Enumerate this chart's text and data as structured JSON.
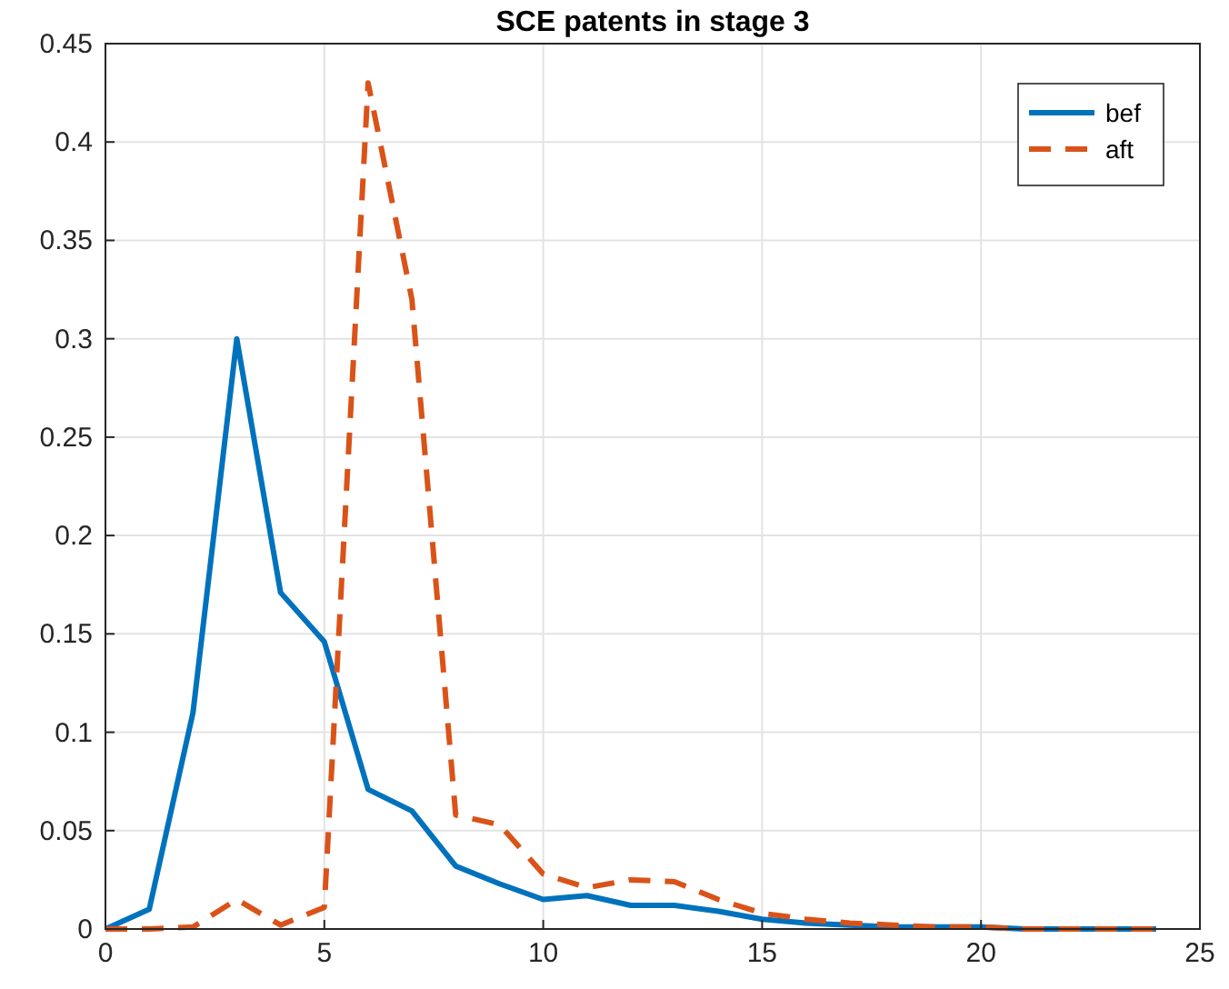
{
  "chart_data": {
    "type": "line",
    "title": "SCE patents in stage 3",
    "x": [
      0,
      1,
      2,
      3,
      4,
      5,
      6,
      7,
      8,
      9,
      10,
      11,
      12,
      13,
      14,
      15,
      16,
      17,
      18,
      19,
      20,
      21,
      22,
      23,
      24
    ],
    "series": [
      {
        "name": "bef",
        "color": "#0072bd",
        "line_style": "solid",
        "values": [
          0,
          0.01,
          0.11,
          0.3,
          0.171,
          0.146,
          0.071,
          0.06,
          0.032,
          0.023,
          0.015,
          0.017,
          0.012,
          0.012,
          0.009,
          0.005,
          0.003,
          0.002,
          0.001,
          0.001,
          0.001,
          0,
          0,
          0,
          0
        ]
      },
      {
        "name": "aft",
        "color": "#d95319",
        "line_style": "dashed",
        "values": [
          0,
          0,
          0.001,
          0.015,
          0.002,
          0.011,
          0.43,
          0.32,
          0.058,
          0.053,
          0.028,
          0.021,
          0.025,
          0.024,
          0.015,
          0.008,
          0.005,
          0.003,
          0.002,
          0.001,
          0.001,
          0,
          0,
          0,
          0
        ]
      }
    ],
    "xlim": [
      0,
      25
    ],
    "xticks": [
      0,
      5,
      10,
      15,
      20,
      25
    ],
    "ylim": [
      0,
      0.45
    ],
    "yticks": [
      0,
      0.05,
      0.1,
      0.15,
      0.2,
      0.25,
      0.3,
      0.35,
      0.4,
      0.45
    ],
    "grid": true,
    "legend": "top right",
    "marker": "none"
  }
}
